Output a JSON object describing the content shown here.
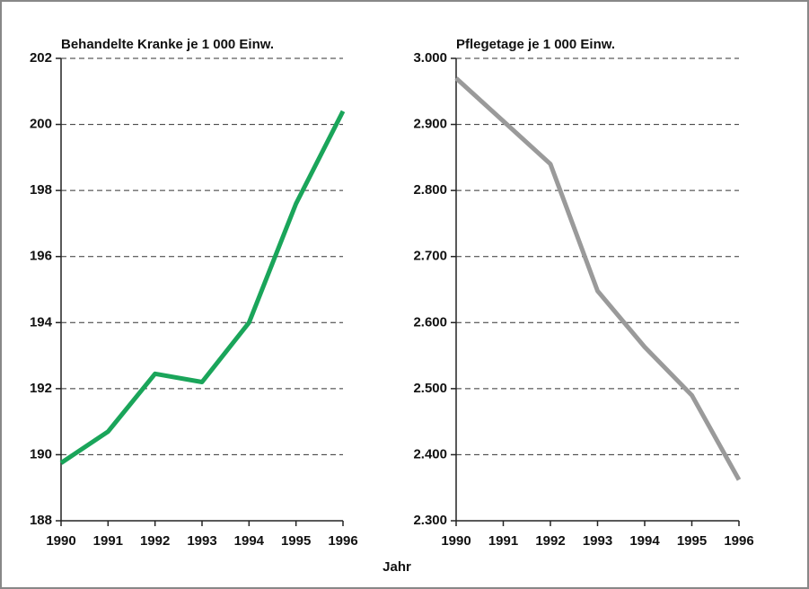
{
  "chart_data": [
    {
      "type": "line",
      "title": "Behandelte Kranke je 1 000 Einw.",
      "categories": [
        "1990",
        "1991",
        "1992",
        "1993",
        "1994",
        "1995",
        "1996"
      ],
      "series": [
        {
          "name": "Behandelte Kranke je 1 000 Einw.",
          "color": "#1aa55a",
          "values": [
            189.75,
            190.7,
            192.45,
            192.2,
            194.0,
            197.6,
            200.4
          ]
        }
      ],
      "ylim": [
        188,
        202
      ],
      "yticks": [
        188,
        190,
        192,
        194,
        196,
        198,
        200,
        202
      ],
      "grid": true
    },
    {
      "type": "line",
      "title": "Pflegetage je 1 000 Einw.",
      "categories": [
        "1990",
        "1991",
        "1992",
        "1993",
        "1994",
        "1995",
        "1996"
      ],
      "series": [
        {
          "name": "Pflegetage je 1 000 Einw.",
          "color": "#9a9a9a",
          "values": [
            2970,
            2905,
            2840,
            2648,
            2563,
            2490,
            2362
          ]
        }
      ],
      "ylim": [
        2300,
        3000
      ],
      "yticks": [
        {
          "value": 2300,
          "label": "2.300"
        },
        {
          "value": 2400,
          "label": "2.400"
        },
        {
          "value": 2500,
          "label": "2.500"
        },
        {
          "value": 2600,
          "label": "2.600"
        },
        {
          "value": 2700,
          "label": "2.700"
        },
        {
          "value": 2800,
          "label": "2.800"
        },
        {
          "value": 2900,
          "label": "2.900"
        },
        {
          "value": 3000,
          "label": "3.000"
        }
      ],
      "grid": true
    }
  ],
  "xlabel": "Jahr"
}
